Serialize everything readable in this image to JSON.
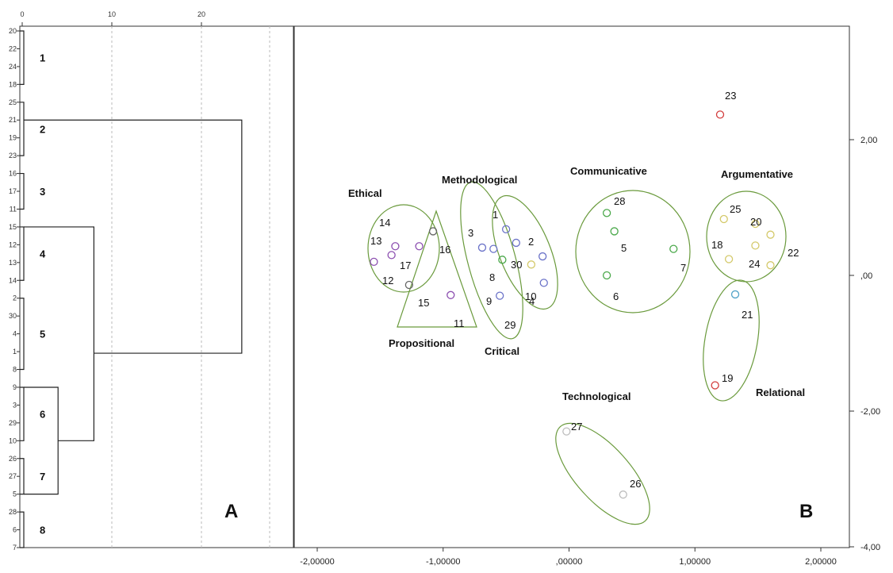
{
  "panel_a_label": "A",
  "panel_b_label": "B",
  "colors": {
    "ellipse": "#6a9a3c",
    "frame": "#333333",
    "grid": "#bbbbbb",
    "purple": "#8c4fb0",
    "blue": "#6a72c8",
    "green": "#4aa84a",
    "yellow": "#d4c96a",
    "red": "#d23b3b",
    "cyan": "#52a3c8",
    "gray": "#bdbdbd",
    "darkgray": "#666666"
  },
  "chart_data": [
    {
      "type": "dendrogram",
      "title": "",
      "x_ticks": [
        "0",
        "10",
        "20"
      ],
      "xlim": [
        0,
        25
      ],
      "leaf_order": [
        "20",
        "22",
        "24",
        "18",
        "25",
        "21",
        "19",
        "23",
        "16",
        "17",
        "11",
        "15",
        "12",
        "13",
        "14",
        "2",
        "30",
        "4",
        "1",
        "8",
        "9",
        "3",
        "29",
        "10",
        "26",
        "27",
        "5",
        "28",
        "6",
        "7"
      ],
      "clusters": [
        {
          "number": "1",
          "members": [
            "20",
            "22",
            "24",
            "18"
          ]
        },
        {
          "number": "2",
          "members": [
            "25",
            "21",
            "19",
            "23"
          ]
        },
        {
          "number": "3",
          "members": [
            "16",
            "17",
            "11"
          ]
        },
        {
          "number": "4",
          "members": [
            "15",
            "12",
            "13",
            "14"
          ]
        },
        {
          "number": "5",
          "members": [
            "2",
            "30",
            "4",
            "1",
            "8"
          ]
        },
        {
          "number": "6",
          "members": [
            "9",
            "3",
            "29",
            "10"
          ]
        },
        {
          "number": "7",
          "members": [
            "26",
            "27",
            "5"
          ]
        },
        {
          "number": "8",
          "members": [
            "28",
            "6",
            "7"
          ]
        }
      ],
      "merges": [
        {
          "clusters": [
            "1",
            "2"
          ],
          "height": 24.5
        },
        {
          "clusters": [
            "3",
            "4"
          ],
          "height": 8
        },
        {
          "clusters": [
            "6",
            "7"
          ],
          "height": 4
        },
        {
          "clusters": [
            "5",
            "6+7"
          ],
          "height": 8
        },
        {
          "clusters": [
            "3+4",
            "5+6+7"
          ],
          "height": 24.5
        }
      ]
    },
    {
      "type": "scatter",
      "title": "",
      "xlabel": "",
      "ylabel": "",
      "xlim": [
        -2.2,
        2.25
      ],
      "ylim": [
        -3.9,
        3.0
      ],
      "x_ticks": [
        {
          "value": -2,
          "label": "-2,00000"
        },
        {
          "value": -1,
          "label": "-1,00000"
        },
        {
          "value": 0,
          "label": ",00000"
        },
        {
          "value": 1,
          "label": "1,00000"
        },
        {
          "value": 2,
          "label": "2,00000"
        }
      ],
      "y_ticks": [
        {
          "value": 2,
          "label": "2,00"
        },
        {
          "value": 0,
          "label": ",00"
        },
        {
          "value": -2,
          "label": "-2,00"
        },
        {
          "value": -4,
          "label": "-4,00"
        }
      ],
      "points": [
        {
          "id": "23",
          "x": 1.2,
          "y": 2.37,
          "color": "red"
        },
        {
          "id": "28",
          "x": 0.3,
          "y": 0.92,
          "color": "green"
        },
        {
          "id": "5",
          "x": 0.36,
          "y": 0.65,
          "color": "green"
        },
        {
          "id": "6",
          "x": 0.3,
          "y": 0.0,
          "color": "green"
        },
        {
          "id": "7",
          "x": 0.83,
          "y": 0.39,
          "color": "green"
        },
        {
          "id": "25",
          "x": 1.23,
          "y": 0.83,
          "color": "yellow"
        },
        {
          "id": "20",
          "x": 1.48,
          "y": 0.76,
          "color": "yellow"
        },
        {
          "id": "18",
          "x": 1.27,
          "y": 0.24,
          "color": "yellow"
        },
        {
          "id": "24",
          "x": 1.48,
          "y": 0.44,
          "color": "yellow"
        },
        {
          "id": "22",
          "x": 1.6,
          "y": 0.6,
          "color": "yellow"
        },
        {
          "id": "22b",
          "x": 1.6,
          "y": 0.15,
          "color": "yellow"
        },
        {
          "id": "21",
          "x": 1.32,
          "y": -0.28,
          "color": "cyan"
        },
        {
          "id": "19",
          "x": 1.16,
          "y": -1.62,
          "color": "red"
        },
        {
          "id": "27",
          "x": -0.02,
          "y": -2.3,
          "color": "gray"
        },
        {
          "id": "26",
          "x": 0.43,
          "y": -3.23,
          "color": "gray"
        },
        {
          "id": "1",
          "x": -0.5,
          "y": 0.68,
          "color": "blue"
        },
        {
          "id": "2",
          "x": -0.42,
          "y": 0.48,
          "color": "blue"
        },
        {
          "id": "3",
          "x": -0.69,
          "y": 0.41,
          "color": "blue"
        },
        {
          "id": "8",
          "x": -0.6,
          "y": 0.39,
          "color": "blue"
        },
        {
          "id": "30",
          "x": -0.3,
          "y": 0.16,
          "color": "yellow"
        },
        {
          "id": "4",
          "x": -0.21,
          "y": 0.28,
          "color": "blue"
        },
        {
          "id": "10",
          "x": -0.2,
          "y": -0.11,
          "color": "blue"
        },
        {
          "id": "9",
          "x": -0.55,
          "y": -0.3,
          "color": "blue"
        },
        {
          "id": "29",
          "x": -0.53,
          "y": 0.23,
          "color": "green"
        },
        {
          "id": "14",
          "x": -1.38,
          "y": 0.43,
          "color": "purple"
        },
        {
          "id": "13",
          "x": -1.41,
          "y": 0.3,
          "color": "purple"
        },
        {
          "id": "17",
          "x": -1.19,
          "y": 0.43,
          "color": "purple"
        },
        {
          "id": "12",
          "x": -1.55,
          "y": 0.2,
          "color": "purple"
        },
        {
          "id": "16",
          "x": -1.08,
          "y": 0.65,
          "color": "darkgray"
        },
        {
          "id": "15",
          "x": -1.27,
          "y": -0.14,
          "color": "darkgray"
        },
        {
          "id": "11",
          "x": -0.94,
          "y": -0.29,
          "color": "purple"
        }
      ],
      "groups": [
        {
          "name": "Ethical",
          "shape": "ellipse"
        },
        {
          "name": "Propositional",
          "shape": "triangle"
        },
        {
          "name": "Methodological",
          "shape": "ellipse"
        },
        {
          "name": "Critical",
          "shape": "ellipse"
        },
        {
          "name": "Communicative",
          "shape": "ellipse"
        },
        {
          "name": "Argumentative",
          "shape": "ellipse"
        },
        {
          "name": "Relational",
          "shape": "ellipse"
        },
        {
          "name": "Technological",
          "shape": "ellipse"
        }
      ]
    }
  ]
}
